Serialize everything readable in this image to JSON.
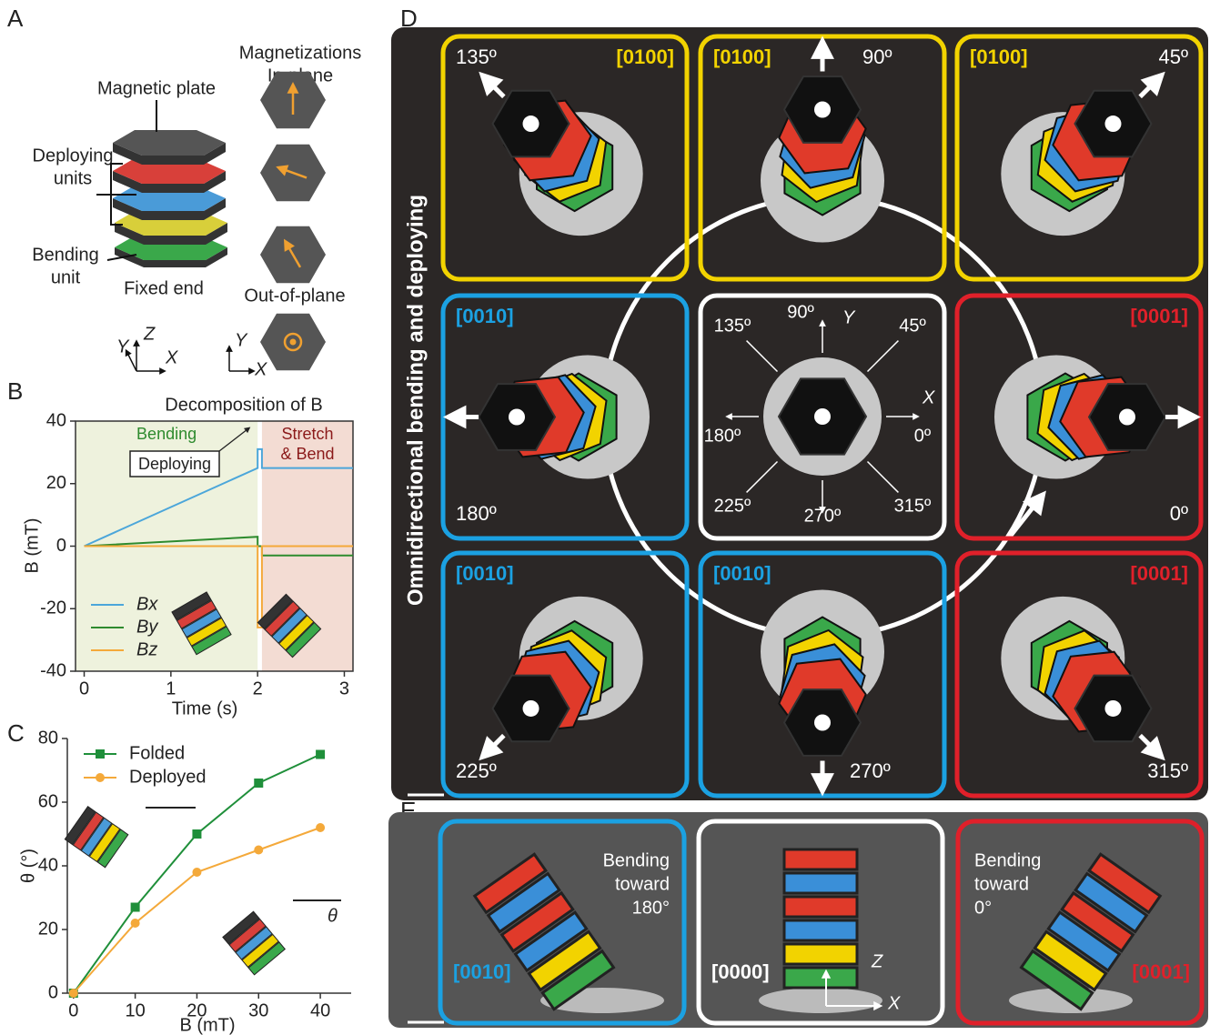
{
  "panel_labels": [
    "A",
    "B",
    "C",
    "D",
    "E"
  ],
  "panel_a": {
    "plate": "Magnetic plate",
    "deploying": [
      "Deploying",
      "units"
    ],
    "bending": [
      "Bending",
      "unit"
    ],
    "fixed": "Fixed end",
    "magnetizations": [
      "Magnetizations",
      "In-plane"
    ],
    "out_of_plane": "Out-of-plane",
    "axes_3d": [
      "Y",
      "Z",
      "X"
    ],
    "axes_2d": [
      "Y",
      "X"
    ]
  },
  "chart_data": [
    {
      "type": "line",
      "title": "Decomposition of B",
      "x_label": "Time (s)",
      "y_label": "B (mT)",
      "x": [
        0,
        2,
        2,
        2.05,
        2.05,
        3.1
      ],
      "series": [
        {
          "name": "Bx",
          "color": "#4ba6da",
          "values": [
            0,
            25,
            31,
            31,
            25,
            25
          ]
        },
        {
          "name": "By",
          "color": "#2e8b2e",
          "values": [
            0,
            3,
            0,
            0,
            -3,
            -3
          ]
        },
        {
          "name": "Bz",
          "color": "#f4a93a",
          "values": [
            0,
            0,
            -26,
            -26,
            0,
            0
          ]
        }
      ],
      "regions": [
        {
          "label": [
            "Bending"
          ],
          "from": -0.1,
          "to": 2,
          "color": "#eef2dd",
          "text_color": "#2e8b2e"
        },
        {
          "label": [
            "Stretch",
            "& Bend"
          ],
          "from": 2.05,
          "to": 3.1,
          "color": "#f3dcd3",
          "text_color": "#8b1a1a"
        }
      ],
      "annotations": [
        "Deploying"
      ],
      "xlim": [
        -0.1,
        3.1
      ],
      "ylim": [
        -40,
        40
      ],
      "xticks": [
        0,
        1,
        2,
        3
      ],
      "yticks": [
        -40,
        -20,
        0,
        20,
        40
      ],
      "legend": "lower left"
    },
    {
      "type": "line",
      "title": "",
      "x_label": "B (mT)",
      "y_label": "θ (°)",
      "x": [
        0,
        10,
        20,
        30,
        40
      ],
      "series": [
        {
          "name": "Folded",
          "color": "#1f8f3a",
          "marker": "square",
          "values": [
            0,
            27,
            50,
            66,
            75
          ]
        },
        {
          "name": "Deployed",
          "color": "#f4a93a",
          "marker": "circle",
          "values": [
            0,
            22,
            38,
            45,
            52
          ]
        }
      ],
      "annotations": [
        "θ"
      ],
      "xlim": [
        -1,
        45
      ],
      "ylim": [
        0,
        80
      ],
      "xticks": [
        0,
        10,
        20,
        30,
        40
      ],
      "yticks": [
        0,
        20,
        40,
        60,
        80
      ],
      "legend": "upper left"
    }
  ],
  "panel_d": {
    "title": "Omnidirectional bending and deploying",
    "cells": [
      {
        "angle": "135º",
        "code": "[0100]",
        "color": "#f2d300"
      },
      {
        "angle": "90º",
        "code": "[0100]",
        "color": "#f2d300"
      },
      {
        "angle": "45º",
        "code": "[0100]",
        "color": "#f2d300"
      },
      {
        "angle": "180º",
        "code": "[0010]",
        "color": "#1ba1e2"
      },
      {
        "angle": "0º",
        "code": "[0001]",
        "color": "#e0202a"
      },
      {
        "angle": "225º",
        "code": "[0010]",
        "color": "#1ba1e2"
      },
      {
        "angle": "270º",
        "code": "[0010]",
        "color": "#1ba1e2"
      },
      {
        "angle": "315º",
        "code": "[0001]",
        "color": "#e0202a"
      }
    ],
    "center": {
      "angles": [
        "0º",
        "45º",
        "90º",
        "135º",
        "180º",
        "225º",
        "270º",
        "315º"
      ],
      "x": "X",
      "y": "Y"
    }
  },
  "panel_e": {
    "cells": [
      {
        "text": [
          "Bending",
          "toward",
          "180°"
        ],
        "code": "[0010]",
        "color": "#1ba1e2"
      },
      {
        "code": "[0000]",
        "color": "#ffffff",
        "z": "Z",
        "x": "X"
      },
      {
        "text": [
          "Bending",
          "toward",
          "0°"
        ],
        "code": "[0001]",
        "color": "#e0202a"
      }
    ]
  }
}
